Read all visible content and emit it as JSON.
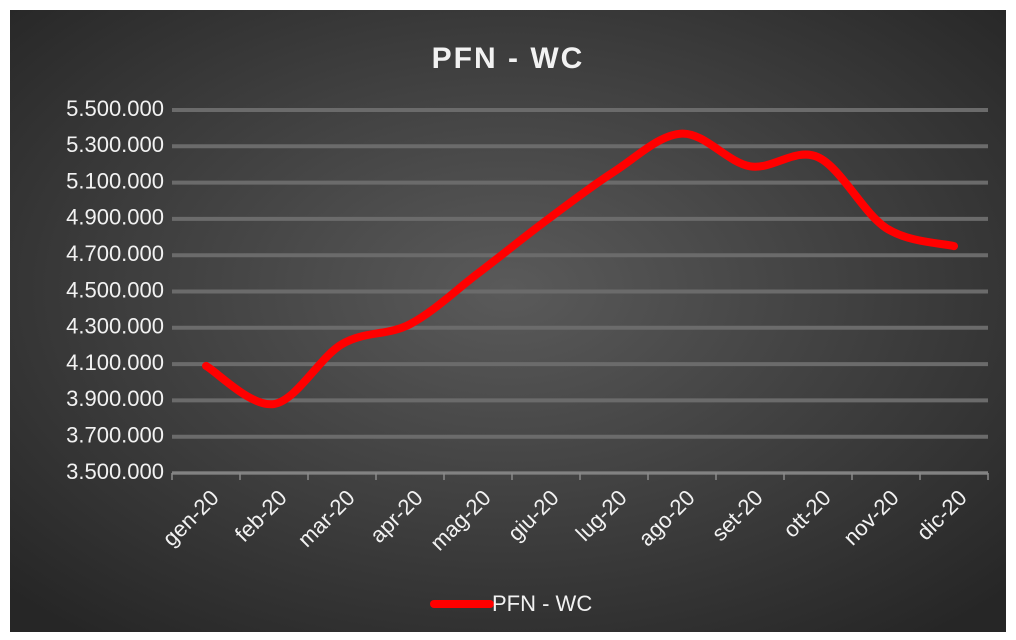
{
  "chart_data": {
    "type": "line",
    "title": "PFN - WC",
    "categories": [
      "gen-20",
      "feb-20",
      "mar-20",
      "apr-20",
      "mag-20",
      "giu-20",
      "lug-20",
      "ago-20",
      "set-20",
      "ott-20",
      "nov-20",
      "dic-20"
    ],
    "series": [
      {
        "name": "PFN - WC",
        "color": "#ff0000",
        "values": [
          4090000,
          3880000,
          4210000,
          4320000,
          4600000,
          4890000,
          5160000,
          5370000,
          5190000,
          5240000,
          4850000,
          4750000
        ]
      }
    ],
    "ylim": [
      3500000,
      5500000
    ],
    "yticks": [
      {
        "value": 3500000,
        "label": "3.500.000"
      },
      {
        "value": 3700000,
        "label": "3.700.000"
      },
      {
        "value": 3900000,
        "label": "3.900.000"
      },
      {
        "value": 4100000,
        "label": "4.100.000"
      },
      {
        "value": 4300000,
        "label": "4.300.000"
      },
      {
        "value": 4500000,
        "label": "4.500.000"
      },
      {
        "value": 4700000,
        "label": "4.700.000"
      },
      {
        "value": 4900000,
        "label": "4.900.000"
      },
      {
        "value": 5100000,
        "label": "5.100.000"
      },
      {
        "value": 5300000,
        "label": "5.300.000"
      },
      {
        "value": 5500000,
        "label": "5.500.000"
      }
    ],
    "grid": true,
    "legend": "bottom"
  }
}
